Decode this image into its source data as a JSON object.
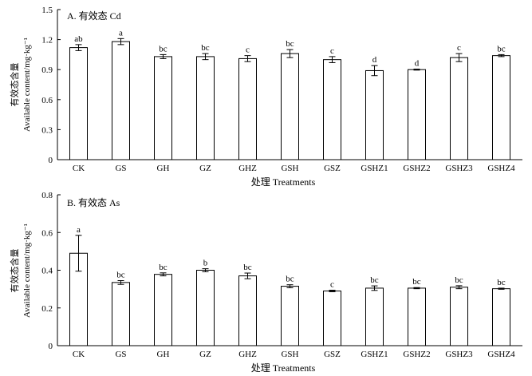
{
  "chart_data": [
    {
      "type": "bar",
      "panel_label": "A. 有效态 Cd",
      "categories": [
        "CK",
        "GS",
        "GH",
        "GZ",
        "GHZ",
        "GSH",
        "GSZ",
        "GSHZ1",
        "GSHZ2",
        "GSHZ3",
        "GSHZ4"
      ],
      "values": [
        1.12,
        1.18,
        1.03,
        1.03,
        1.01,
        1.06,
        1.0,
        0.89,
        0.9,
        1.02,
        1.04
      ],
      "errors": [
        0.03,
        0.03,
        0.02,
        0.03,
        0.03,
        0.04,
        0.03,
        0.05,
        0.005,
        0.04,
        0.01
      ],
      "letters": [
        "ab",
        "a",
        "bc",
        "bc",
        "c",
        "bc",
        "c",
        "d",
        "d",
        "c",
        "bc"
      ],
      "ylim": [
        0,
        1.5
      ],
      "yticks": [
        "0",
        "0.3",
        "0.6",
        "0.9",
        "1.2",
        "1.5"
      ],
      "ylabel_cn": "有效态含量",
      "ylabel_en": "Available content/mg·kg⁻¹",
      "xlabel": "处理 Treatments",
      "grid": false
    },
    {
      "type": "bar",
      "panel_label": "B. 有效态 As",
      "categories": [
        "CK",
        "GS",
        "GH",
        "GZ",
        "GHZ",
        "GSH",
        "GSZ",
        "GSHZ1",
        "GSHZ2",
        "GSHZ3",
        "GSHZ4"
      ],
      "values": [
        0.49,
        0.335,
        0.378,
        0.4,
        0.37,
        0.315,
        0.29,
        0.305,
        0.305,
        0.31,
        0.302
      ],
      "errors": [
        0.095,
        0.01,
        0.008,
        0.008,
        0.015,
        0.008,
        0.004,
        0.012,
        0.003,
        0.008,
        0.003
      ],
      "letters": [
        "a",
        "bc",
        "bc",
        "b",
        "bc",
        "bc",
        "c",
        "bc",
        "bc",
        "bc",
        "bc"
      ],
      "ylim": [
        0,
        0.8
      ],
      "yticks": [
        "0",
        "0.2",
        "0.4",
        "0.6",
        "0.8"
      ],
      "ylabel_cn": "有效态含量",
      "ylabel_en": "Available content/mg·kg⁻¹",
      "xlabel": "处理 Treatments",
      "grid": false
    }
  ]
}
